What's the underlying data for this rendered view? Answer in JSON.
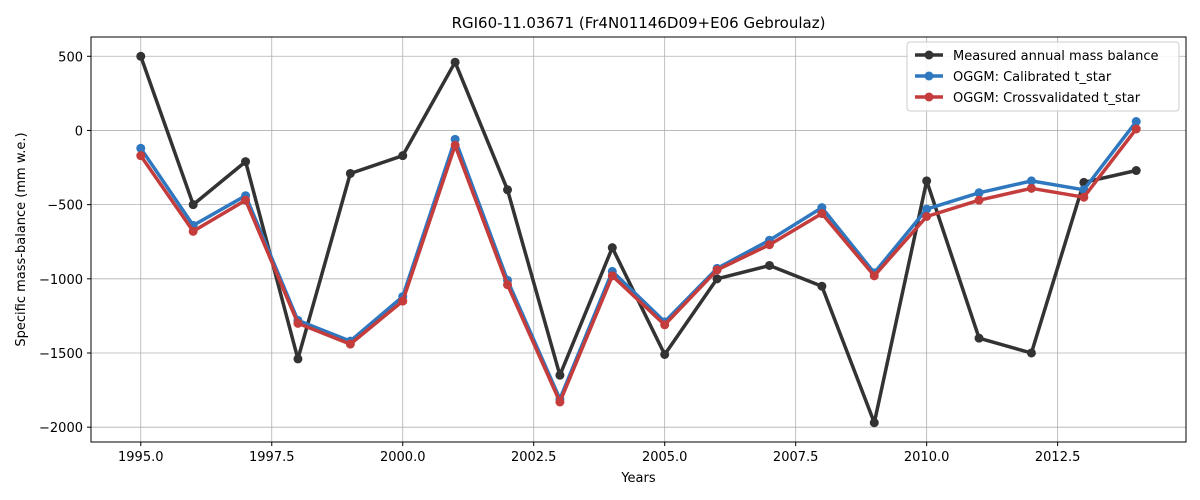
{
  "chart_data": {
    "type": "line",
    "title": "RGI60-11.03671 (Fr4N01146D09+E06 Gebroulaz)",
    "xlabel": "Years",
    "ylabel": "Specific mass-balance (mm w.e.)",
    "xlim": [
      1994.05,
      2014.95
    ],
    "ylim": [
      -2100,
      630
    ],
    "x_ticks": [
      1995.0,
      1997.5,
      2000.0,
      2002.5,
      2005.0,
      2007.5,
      2010.0,
      2012.5
    ],
    "x_tick_labels": [
      "1995.0",
      "1997.5",
      "2000.0",
      "2002.5",
      "2005.0",
      "2007.5",
      "2010.0",
      "2012.5"
    ],
    "y_ticks": [
      500,
      0,
      -500,
      -1000,
      -1500,
      -2000
    ],
    "y_tick_labels": [
      "500",
      "0",
      "−500",
      "−1000",
      "−1500",
      "−2000"
    ],
    "grid": true,
    "legend_position": "top-right",
    "x": [
      1995,
      1996,
      1997,
      1998,
      1999,
      2000,
      2001,
      2002,
      2003,
      2004,
      2005,
      2006,
      2007,
      2008,
      2009,
      2010,
      2011,
      2012,
      2013,
      2014
    ],
    "series": [
      {
        "name": "Measured annual mass balance",
        "color": "#333333",
        "values": [
          500,
          -500,
          -210,
          -1540,
          -290,
          -170,
          460,
          -400,
          -1650,
          -790,
          -1510,
          -1000,
          -910,
          -1050,
          -1970,
          -340,
          -1400,
          -1500,
          -350,
          -270
        ]
      },
      {
        "name": "OGGM: Calibrated t_star",
        "color": "#2f78c0",
        "values": [
          -120,
          -640,
          -440,
          -1280,
          -1420,
          -1120,
          -60,
          -1010,
          -1810,
          -950,
          -1290,
          -930,
          -740,
          -520,
          -960,
          -530,
          -420,
          -340,
          -400,
          60
        ]
      },
      {
        "name": "OGGM: Crossvalidated t_star",
        "color": "#c43c3c",
        "values": [
          -170,
          -680,
          -470,
          -1300,
          -1440,
          -1150,
          -100,
          -1040,
          -1830,
          -980,
          -1310,
          -940,
          -770,
          -560,
          -980,
          -580,
          -470,
          -390,
          -450,
          10
        ]
      }
    ]
  }
}
